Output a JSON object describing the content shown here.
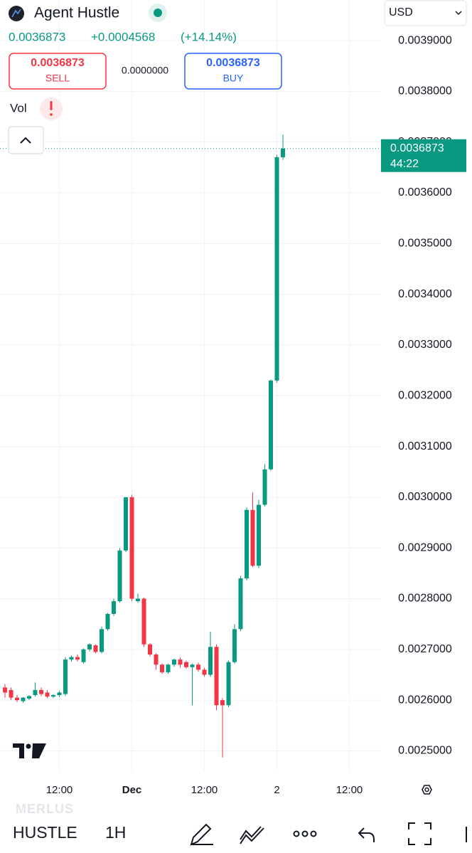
{
  "header": {
    "symbol": "Agent Hustle",
    "currency": "USD",
    "last": "0.0036873",
    "change": "+0.0004568",
    "change_pct": "(+14.14%)",
    "sell_price": "0.0036873",
    "sell_label": "SELL",
    "spread": "0.0000000",
    "buy_price": "0.0036873",
    "buy_label": "BUY",
    "indicator": "Vol"
  },
  "chart_data": {
    "type": "candlestick",
    "up_color": "#089981",
    "down_color": "#f23645",
    "categories": [
      null,
      null,
      null,
      null,
      null,
      null,
      null,
      null,
      null,
      "12:00",
      null,
      null,
      null,
      null,
      null,
      null,
      null,
      null,
      null,
      null,
      null,
      "Dec",
      null,
      null,
      null,
      null,
      null,
      null,
      null,
      null,
      null,
      null,
      null,
      "12:00",
      null,
      null,
      null,
      null,
      null,
      null,
      null,
      null,
      null,
      null,
      null,
      "2",
      null
    ],
    "xticks": [
      {
        "value": 9,
        "label": "12:00"
      },
      {
        "value": 21,
        "label": "Dec"
      },
      {
        "value": 33,
        "label": "12:00"
      },
      {
        "value": 45,
        "label": "2"
      },
      {
        "value": 57,
        "label": "12:00"
      }
    ],
    "series": [
      {
        "name": "HUSTLE",
        "open": [
          0.002625,
          0.00262,
          0.002605,
          0.002598,
          0.002603,
          0.00261,
          0.00262,
          0.002615,
          0.002607,
          0.00261,
          0.002612,
          0.00268,
          0.002685,
          0.002675,
          0.0027,
          0.002708,
          0.002695,
          0.00274,
          0.00277,
          0.002795,
          0.002895,
          0.003,
          0.002795,
          0.0028,
          0.00271,
          0.00269,
          0.00267,
          0.002655,
          0.00267,
          0.00268,
          0.002675,
          0.002665,
          0.00267,
          0.00266,
          0.00265,
          0.002705,
          0.0026,
          0.00259,
          0.002675,
          0.00274,
          0.00284,
          0.002975,
          0.002865,
          0.002985,
          0.003055,
          0.00323,
          0.00367
        ],
        "high": [
          0.002632,
          0.002625,
          0.00261,
          0.002606,
          0.00261,
          0.002635,
          0.002625,
          0.00262,
          0.002612,
          0.002618,
          0.002685,
          0.002688,
          0.00269,
          0.002702,
          0.002712,
          0.00271,
          0.002745,
          0.002772,
          0.0028,
          0.0029,
          0.003,
          0.003005,
          0.00281,
          0.002802,
          0.002712,
          0.002692,
          0.002672,
          0.002672,
          0.002682,
          0.002684,
          0.002678,
          0.002672,
          0.002674,
          0.002664,
          0.002735,
          0.00271,
          0.002604,
          0.002678,
          0.00275,
          0.002845,
          0.00298,
          0.00301,
          0.002995,
          0.003065,
          0.003232,
          0.003675,
          0.003715
        ],
        "low": [
          0.002605,
          0.0026,
          0.002596,
          0.002595,
          0.0026,
          0.002607,
          0.002608,
          0.002604,
          0.002604,
          0.002606,
          0.002608,
          0.002676,
          0.002676,
          0.002672,
          0.002696,
          0.002692,
          0.002692,
          0.002737,
          0.002766,
          0.002792,
          0.002892,
          0.002795,
          0.002792,
          0.002705,
          0.002686,
          0.00266,
          0.002652,
          0.002652,
          0.002666,
          0.002664,
          0.002662,
          0.00259,
          0.002656,
          0.002646,
          0.002646,
          0.00258,
          0.002487,
          0.002586,
          0.002672,
          0.002736,
          0.002836,
          0.002862,
          0.00286,
          0.002982,
          0.003052,
          0.003226,
          0.003665
        ],
        "close": [
          0.002615,
          0.002605,
          0.0026,
          0.002605,
          0.002608,
          0.00262,
          0.002612,
          0.002607,
          0.00261,
          0.002615,
          0.00268,
          0.002685,
          0.00268,
          0.0027,
          0.00271,
          0.002695,
          0.00274,
          0.00277,
          0.002795,
          0.002895,
          0.003,
          0.0028,
          0.0028,
          0.00271,
          0.00269,
          0.00267,
          0.002655,
          0.00267,
          0.00268,
          0.00267,
          0.002665,
          0.00267,
          0.00266,
          0.00265,
          0.002705,
          0.00259,
          0.00259,
          0.002675,
          0.00274,
          0.00284,
          0.002975,
          0.002865,
          0.002985,
          0.003055,
          0.00323,
          0.00367,
          0.0036873
        ]
      }
    ],
    "ylim": [
      0.00246,
      0.00398
    ],
    "yticks": [
      {
        "value": 0.0039,
        "label": "0.0039000"
      },
      {
        "value": 0.0038,
        "label": "0.0038000"
      },
      {
        "value": 0.0037,
        "label": "0.0037000"
      },
      {
        "value": 0.0036,
        "label": "0.0036000"
      },
      {
        "value": 0.0035,
        "label": "0.0035000"
      },
      {
        "value": 0.0034,
        "label": "0.0034000"
      },
      {
        "value": 0.0033,
        "label": "0.0033000"
      },
      {
        "value": 0.0032,
        "label": "0.0032000"
      },
      {
        "value": 0.0031,
        "label": "0.0031000"
      },
      {
        "value": 0.003,
        "label": "0.0030000"
      },
      {
        "value": 0.0029,
        "label": "0.0029000"
      },
      {
        "value": 0.0028,
        "label": "0.0028000"
      },
      {
        "value": 0.0027,
        "label": "0.0027000"
      },
      {
        "value": 0.0026,
        "label": "0.0026000"
      },
      {
        "value": 0.0025,
        "label": "0.0025000"
      }
    ],
    "grid": true,
    "last_price": {
      "value": 0.0036873,
      "label": "0.0036873",
      "countdown": "44:22",
      "color": "#089981"
    }
  },
  "footer": {
    "watermark": "MERLUS",
    "symbol": "HUSTLE",
    "interval": "1H"
  }
}
